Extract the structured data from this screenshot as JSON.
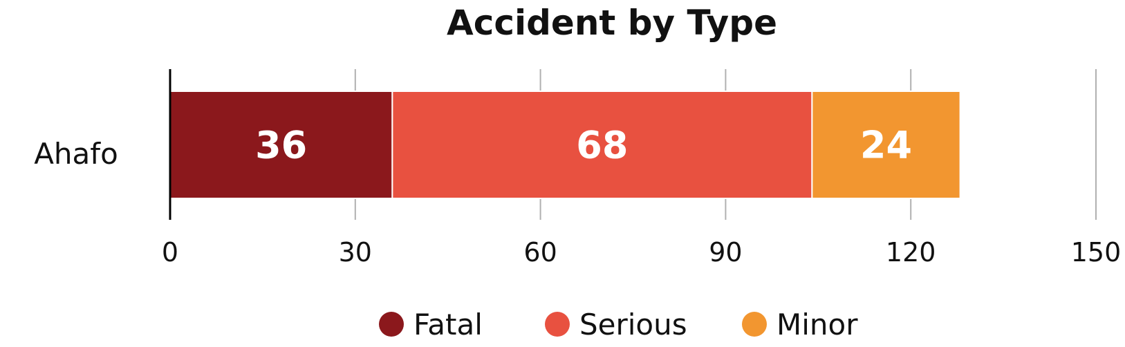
{
  "chart_data": {
    "type": "bar",
    "orientation": "horizontal",
    "stacked": true,
    "title": "Accident by Type",
    "categories": [
      "Ahafo"
    ],
    "series": [
      {
        "name": "Fatal",
        "values": [
          36
        ],
        "color": "#8b181c"
      },
      {
        "name": "Serious",
        "values": [
          68
        ],
        "color": "#e85140"
      },
      {
        "name": "Minor",
        "values": [
          24
        ],
        "color": "#f29630"
      }
    ],
    "xlim": [
      0,
      150
    ],
    "xticks": [
      "0",
      "30",
      "60",
      "90",
      "120",
      "150"
    ],
    "grid": "vertical",
    "legend": "bottom"
  }
}
